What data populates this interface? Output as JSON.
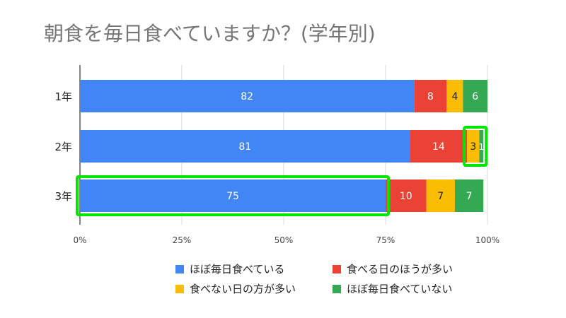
{
  "chart_data": {
    "type": "bar",
    "orientation": "horizontal",
    "stacked": true,
    "title": "朝食を毎日食べていますか？(学年別)",
    "categories": [
      "1年",
      "2年",
      "3年"
    ],
    "series": [
      {
        "name": "ほぼ毎日食べている",
        "color": "#4285F4",
        "values": [
          82,
          81,
          75
        ]
      },
      {
        "name": "食べる日のほうが多い",
        "color": "#EA4335",
        "values": [
          8,
          14,
          10
        ]
      },
      {
        "name": "食べない日の方が多い",
        "color": "#FBBC04",
        "values": [
          4,
          3,
          7
        ]
      },
      {
        "name": "ほぼ毎日食べていない",
        "color": "#34A853",
        "values": [
          6,
          1,
          7
        ]
      }
    ],
    "x_ticks": [
      "0%",
      "25%",
      "50%",
      "75%",
      "100%"
    ],
    "xlim": [
      0,
      100
    ],
    "grid": true,
    "legend_position": "bottom",
    "highlights": [
      {
        "category": "2年",
        "series": [
          "食べない日の方が多い",
          "ほぼ毎日食べていない"
        ],
        "color": "#00E600"
      },
      {
        "category": "3年",
        "series": [
          "ほぼ毎日食べている"
        ],
        "color": "#00E600"
      }
    ]
  }
}
